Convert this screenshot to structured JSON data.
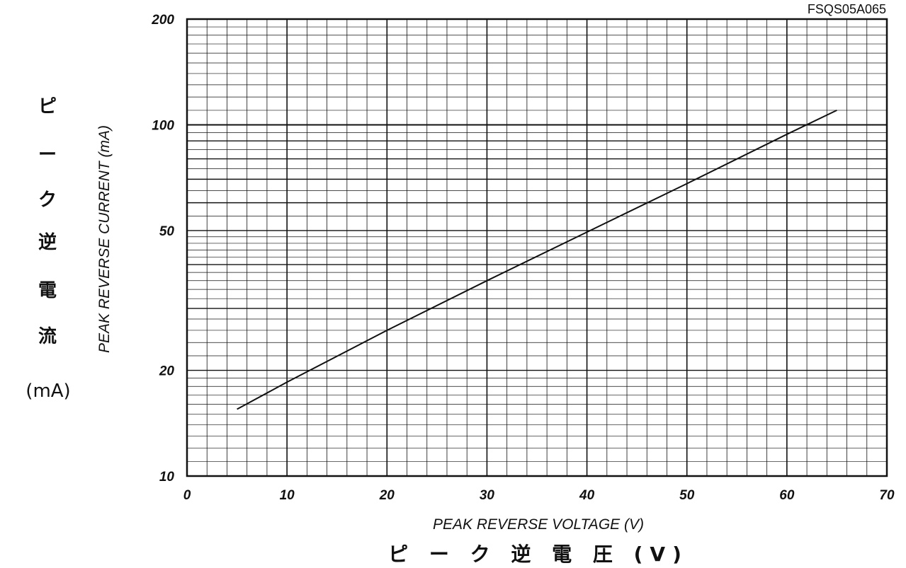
{
  "part_number": "FSQS05A065",
  "y_axis_label_en": "PEAK REVERSE CURRENT (mA)",
  "y_axis_label_jp": [
    "ピ",
    "ー",
    "ク",
    "逆",
    "電",
    "流"
  ],
  "y_axis_unit_jp": "(mA)",
  "x_axis_label_en": "PEAK REVERSE VOLTAGE (V)",
  "x_axis_label_jp": "ピ ー ク 逆 電 圧 (V)",
  "chart_data": {
    "type": "line",
    "title": "",
    "xlabel": "PEAK REVERSE VOLTAGE (V)",
    "ylabel": "PEAK REVERSE CURRENT (mA)",
    "xlim": [
      0,
      70
    ],
    "ylim": [
      10,
      200
    ],
    "y_scale": "log",
    "grid": true,
    "x_ticks": [
      0,
      10,
      20,
      30,
      40,
      50,
      60,
      70
    ],
    "y_ticks": [
      10,
      20,
      50,
      100,
      200
    ],
    "series": [
      {
        "x": [
          5,
          10,
          20,
          30,
          40,
          50,
          60,
          65
        ],
        "y": [
          15.5,
          18.5,
          26,
          36,
          49.5,
          68,
          94,
          110
        ]
      }
    ]
  }
}
